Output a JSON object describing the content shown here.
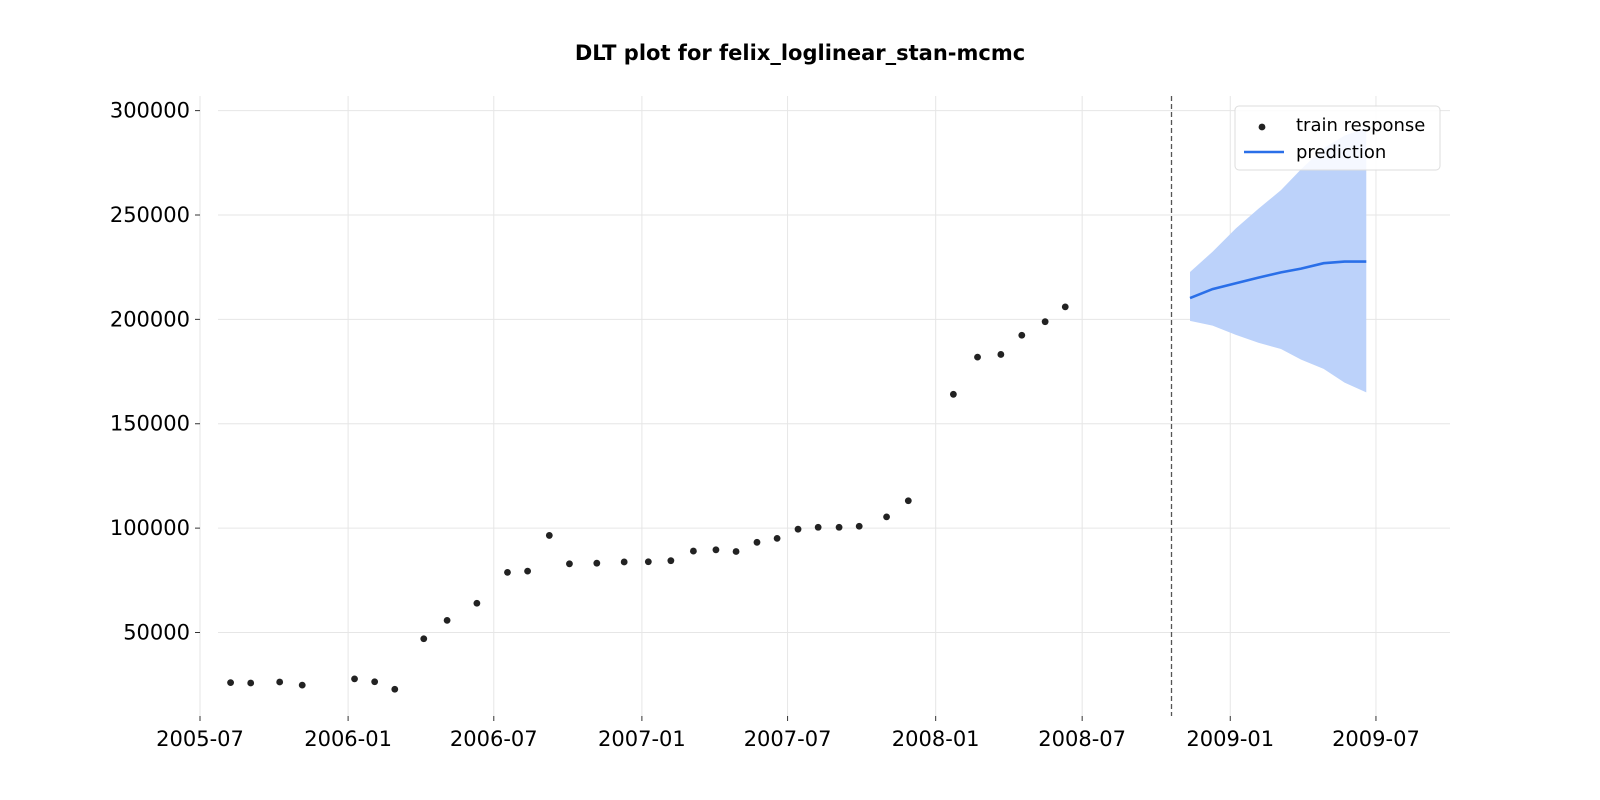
{
  "chart_data": {
    "type": "line",
    "title": "DLT plot for felix_loglinear_stan-mcmc",
    "xlabel": "",
    "ylabel": "",
    "x_ticks": [
      "2005-07",
      "2006-01",
      "2006-07",
      "2007-01",
      "2007-07",
      "2008-01",
      "2008-07",
      "2009-01",
      "2009-07"
    ],
    "y_ticks": [
      50000,
      100000,
      150000,
      200000,
      250000,
      300000
    ],
    "y_tick_labels": [
      "50000",
      "100000",
      "150000",
      "200000",
      "250000",
      "300000"
    ],
    "xlim": [
      "2005-07-01",
      "2009-10-01"
    ],
    "ylim": [
      10000,
      307000
    ],
    "grid": true,
    "legend_position": "top-right",
    "cutoff_date": "2008-10-20",
    "series": [
      {
        "name": "train response",
        "kind": "scatter",
        "color": "#222222",
        "points": [
          {
            "x": "2005-08-08",
            "y": 26000
          },
          {
            "x": "2005-09-02",
            "y": 25800
          },
          {
            "x": "2005-10-08",
            "y": 26300
          },
          {
            "x": "2005-11-05",
            "y": 24800
          },
          {
            "x": "2006-01-09",
            "y": 27800
          },
          {
            "x": "2006-02-03",
            "y": 26400
          },
          {
            "x": "2006-02-28",
            "y": 22800
          },
          {
            "x": "2006-04-05",
            "y": 47000
          },
          {
            "x": "2006-05-04",
            "y": 55800
          },
          {
            "x": "2006-06-10",
            "y": 64000
          },
          {
            "x": "2006-07-18",
            "y": 78800
          },
          {
            "x": "2006-08-12",
            "y": 79400
          },
          {
            "x": "2006-09-08",
            "y": 96500
          },
          {
            "x": "2006-10-03",
            "y": 82900
          },
          {
            "x": "2006-11-06",
            "y": 83200
          },
          {
            "x": "2006-12-10",
            "y": 83800
          },
          {
            "x": "2007-01-09",
            "y": 83900
          },
          {
            "x": "2007-02-06",
            "y": 84400
          },
          {
            "x": "2007-03-06",
            "y": 89000
          },
          {
            "x": "2007-04-03",
            "y": 89600
          },
          {
            "x": "2007-04-28",
            "y": 88800
          },
          {
            "x": "2007-05-24",
            "y": 93200
          },
          {
            "x": "2007-06-18",
            "y": 95100
          },
          {
            "x": "2007-07-14",
            "y": 99500
          },
          {
            "x": "2007-08-08",
            "y": 100400
          },
          {
            "x": "2007-09-03",
            "y": 100400
          },
          {
            "x": "2007-09-28",
            "y": 100900
          },
          {
            "x": "2007-11-01",
            "y": 105400
          },
          {
            "x": "2007-11-28",
            "y": 113100
          },
          {
            "x": "2008-01-23",
            "y": 164100
          },
          {
            "x": "2008-02-22",
            "y": 181900
          },
          {
            "x": "2008-03-22",
            "y": 183200
          },
          {
            "x": "2008-04-17",
            "y": 192400
          },
          {
            "x": "2008-05-16",
            "y": 198900
          },
          {
            "x": "2008-06-10",
            "y": 206000
          }
        ]
      },
      {
        "name": "prediction",
        "kind": "line",
        "color": "#2a6fe8",
        "band_color": "#bcd2fa",
        "points": [
          {
            "x": "2008-11-12",
            "y": 210200,
            "lower": 199300,
            "upper": 222700
          },
          {
            "x": "2008-12-10",
            "y": 214500,
            "lower": 197000,
            "upper": 232400
          },
          {
            "x": "2009-01-08",
            "y": 217300,
            "lower": 192600,
            "upper": 243600
          },
          {
            "x": "2009-02-05",
            "y": 220000,
            "lower": 188800,
            "upper": 253000
          },
          {
            "x": "2009-03-05",
            "y": 222500,
            "lower": 185800,
            "upper": 261900
          },
          {
            "x": "2009-03-30",
            "y": 224300,
            "lower": 180700,
            "upper": 271900
          },
          {
            "x": "2009-04-27",
            "y": 226900,
            "lower": 176300,
            "upper": 282100
          },
          {
            "x": "2009-05-23",
            "y": 227700,
            "lower": 169700,
            "upper": 288000
          },
          {
            "x": "2009-06-19",
            "y": 227700,
            "lower": 165000,
            "upper": 291800
          }
        ]
      }
    ]
  }
}
